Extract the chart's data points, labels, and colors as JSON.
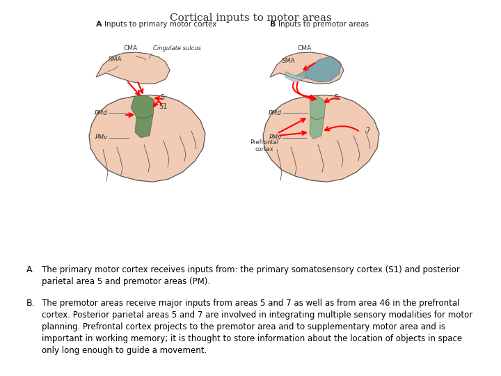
{
  "title": "Cortical inputs to motor areas",
  "title_fontsize": 11,
  "title_color": "#333333",
  "background_color": "#ffffff",
  "text_A_label": "A.",
  "text_A_body": "The primary motor cortex receives inputs from: the primary somatosensory cortex (S1) and posterior\nparietal area 5 and premotor areas (PM).",
  "text_B_label": "B.",
  "text_B_body": "The premotor areas receive major inputs from areas 5 and 7 as well as from area 46 in the prefrontal\ncortex. Posterior parietal areas 5 and 7 are involved in integrating multiple sensory modalities for motor\nplanning. Prefrontal cortex projects to the premotor area and to supplementary motor area and is\nimportant in working memory; it is thought to store information about the location of objects in space\nonly long enough to guide a movement.",
  "text_fontsize": 8.5,
  "label_fontsize": 9,
  "brain_color": "#f2cbb5",
  "brain_ec": "#555555",
  "green_color": "#5a8a50",
  "teal_color": "#5599aa",
  "teal_light": "#88bbbb"
}
